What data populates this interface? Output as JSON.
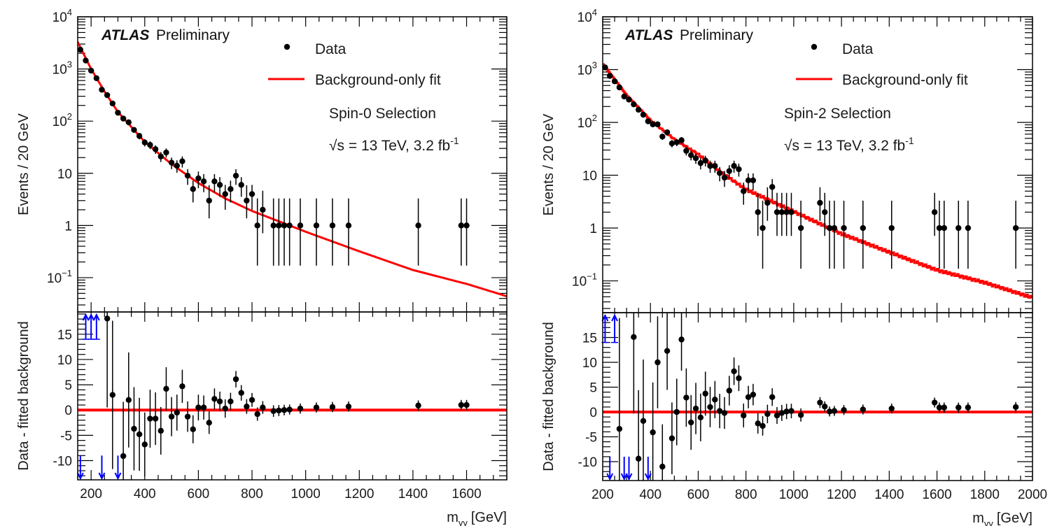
{
  "colors": {
    "data": "#000000",
    "fit": "#ff0000",
    "arrows": "#0000ff",
    "frame": "#000000"
  },
  "chart_data": [
    {
      "type": "scatter",
      "panel": "left",
      "experiment": "ATLAS",
      "status": "Preliminary",
      "selection": "Spin-0 Selection",
      "energy_lumi": "√s = 13 TeV, 3.2 fb",
      "lumi_exponent": "-1",
      "legend": {
        "data": "Data",
        "fit": "Background-only fit",
        "placement": "top-right"
      },
      "xlabel": "m",
      "xlabel_sub": "γγ",
      "xlabel_unit": "[GeV]",
      "xlim": [
        150,
        1750
      ],
      "xticks": [
        200,
        400,
        600,
        800,
        1000,
        1200,
        1400,
        1600
      ],
      "main": {
        "ylabel": "Events / 20 GeV",
        "yscale": "log",
        "ylim": [
          0.022,
          10000
        ],
        "yticks": [
          {
            "base": "10",
            "exp": "4",
            "v": 10000
          },
          {
            "base": "10",
            "exp": "3",
            "v": 1000
          },
          {
            "base": "10",
            "exp": "2",
            "v": 100
          },
          {
            "base": "10",
            "exp": "",
            "v": 10
          },
          {
            "base": "1",
            "exp": "",
            "v": 1
          },
          {
            "base": "10",
            "exp": "−1",
            "v": 0.1
          }
        ],
        "data": [
          [
            160,
            2340
          ],
          [
            180,
            1450
          ],
          [
            200,
            930
          ],
          [
            220,
            665
          ],
          [
            240,
            400
          ],
          [
            260,
            315
          ],
          [
            280,
            218
          ],
          [
            300,
            145
          ],
          [
            320,
            112
          ],
          [
            340,
            95
          ],
          [
            360,
            68
          ],
          [
            380,
            52
          ],
          [
            400,
            39
          ],
          [
            420,
            35
          ],
          [
            440,
            29
          ],
          [
            460,
            21
          ],
          [
            480,
            25
          ],
          [
            500,
            16
          ],
          [
            520,
            14
          ],
          [
            540,
            17
          ],
          [
            560,
            9
          ],
          [
            580,
            5
          ],
          [
            600,
            8
          ],
          [
            620,
            7
          ],
          [
            640,
            3
          ],
          [
            660,
            7
          ],
          [
            680,
            6
          ],
          [
            700,
            4
          ],
          [
            720,
            5
          ],
          [
            740,
            9
          ],
          [
            760,
            6
          ],
          [
            780,
            3
          ],
          [
            800,
            4
          ],
          [
            820,
            1
          ],
          [
            840,
            2
          ],
          [
            880,
            1
          ],
          [
            900,
            1
          ],
          [
            920,
            1
          ],
          [
            940,
            1
          ],
          [
            980,
            1
          ],
          [
            1040,
            1
          ],
          [
            1100,
            1
          ],
          [
            1160,
            1
          ],
          [
            1420,
            1
          ],
          [
            1580,
            1
          ],
          [
            1600,
            1
          ]
        ],
        "fit": [
          [
            150,
            3300
          ],
          [
            200,
            1000
          ],
          [
            250,
            370
          ],
          [
            300,
            150
          ],
          [
            400,
            40
          ],
          [
            500,
            15
          ],
          [
            600,
            6.5
          ],
          [
            700,
            3.3
          ],
          [
            800,
            1.9
          ],
          [
            1000,
            0.76
          ],
          [
            1200,
            0.32
          ],
          [
            1400,
            0.14
          ],
          [
            1600,
            0.076
          ],
          [
            1750,
            0.044
          ]
        ]
      },
      "ratio": {
        "ylabel": "Data - fitted background",
        "ylim": [
          -13.8,
          19.4
        ],
        "yticks": [
          15,
          10,
          5,
          0,
          -5,
          -10
        ],
        "points": [
          [
            260,
            18.1
          ],
          [
            280,
            3.0
          ],
          [
            320,
            -9.1
          ],
          [
            340,
            2.0
          ],
          [
            360,
            -3.7
          ],
          [
            380,
            -4.8
          ],
          [
            400,
            -6.8
          ],
          [
            420,
            -1.7
          ],
          [
            440,
            -1.7
          ],
          [
            460,
            -4.1
          ],
          [
            480,
            4.2
          ],
          [
            500,
            -1.3
          ],
          [
            520,
            -0.5
          ],
          [
            540,
            4.7
          ],
          [
            560,
            -1.3
          ],
          [
            580,
            -3.8
          ],
          [
            600,
            0.5
          ],
          [
            620,
            0.5
          ],
          [
            640,
            -2.5
          ],
          [
            660,
            2.2
          ],
          [
            680,
            1.7
          ],
          [
            700,
            0.3
          ],
          [
            720,
            1.7
          ],
          [
            740,
            6.1
          ],
          [
            760,
            3.4
          ],
          [
            780,
            0.7
          ],
          [
            800,
            2.0
          ],
          [
            820,
            -0.8
          ],
          [
            840,
            0.5
          ],
          [
            880,
            -0.2
          ],
          [
            900,
            -0.1
          ],
          [
            920,
            0.0
          ],
          [
            940,
            0.1
          ],
          [
            980,
            0.3
          ],
          [
            1040,
            0.5
          ],
          [
            1100,
            0.6
          ],
          [
            1160,
            0.7
          ],
          [
            1420,
            0.9
          ],
          [
            1580,
            1.0
          ],
          [
            1600,
            1.0
          ]
        ],
        "arrows_up": [
          180,
          200,
          220
        ],
        "arrows_down": [
          160,
          240,
          300
        ]
      }
    },
    {
      "type": "scatter",
      "panel": "right",
      "experiment": "ATLAS",
      "status": "Preliminary",
      "selection": "Spin-2 Selection",
      "energy_lumi": "√s = 13 TeV, 3.2 fb",
      "lumi_exponent": "-1",
      "legend": {
        "data": "Data",
        "fit": "Background-only fit",
        "placement": "top-right"
      },
      "xlabel": "m",
      "xlabel_sub": "γγ",
      "xlabel_unit": "[GeV]",
      "xlim": [
        200,
        2000
      ],
      "xticks": [
        200,
        400,
        600,
        800,
        1000,
        1200,
        1400,
        1600,
        1800,
        2000
      ],
      "main": {
        "ylabel": "Events / 20 GeV",
        "yscale": "log",
        "ylim": [
          0.025,
          10000
        ],
        "yticks": [
          {
            "base": "10",
            "exp": "4",
            "v": 10000
          },
          {
            "base": "10",
            "exp": "3",
            "v": 1000
          },
          {
            "base": "10",
            "exp": "2",
            "v": 100
          },
          {
            "base": "10",
            "exp": "",
            "v": 10
          },
          {
            "base": "1",
            "exp": "",
            "v": 1
          },
          {
            "base": "10",
            "exp": "−1",
            "v": 0.1
          }
        ],
        "data": [
          [
            210,
            1100
          ],
          [
            230,
            760
          ],
          [
            250,
            600
          ],
          [
            270,
            460
          ],
          [
            290,
            310
          ],
          [
            310,
            270
          ],
          [
            330,
            220
          ],
          [
            350,
            174
          ],
          [
            370,
            140
          ],
          [
            390,
            105
          ],
          [
            410,
            92
          ],
          [
            430,
            92
          ],
          [
            450,
            54
          ],
          [
            470,
            65
          ],
          [
            490,
            40
          ],
          [
            510,
            42
          ],
          [
            530,
            46
          ],
          [
            550,
            29
          ],
          [
            570,
            24
          ],
          [
            590,
            21
          ],
          [
            610,
            17
          ],
          [
            630,
            19
          ],
          [
            650,
            15
          ],
          [
            670,
            15
          ],
          [
            690,
            11
          ],
          [
            710,
            9
          ],
          [
            730,
            12
          ],
          [
            750,
            15
          ],
          [
            770,
            13
          ],
          [
            790,
            5
          ],
          [
            810,
            8
          ],
          [
            830,
            8
          ],
          [
            850,
            2
          ],
          [
            870,
            1
          ],
          [
            890,
            3
          ],
          [
            910,
            6
          ],
          [
            930,
            2
          ],
          [
            950,
            2
          ],
          [
            970,
            2
          ],
          [
            990,
            2
          ],
          [
            1030,
            1
          ],
          [
            1110,
            3
          ],
          [
            1130,
            2
          ],
          [
            1150,
            1
          ],
          [
            1170,
            1
          ],
          [
            1210,
            1
          ],
          [
            1290,
            1
          ],
          [
            1410,
            1
          ],
          [
            1590,
            2
          ],
          [
            1610,
            1
          ],
          [
            1630,
            1
          ],
          [
            1690,
            1
          ],
          [
            1730,
            1
          ],
          [
            1930,
            1
          ]
        ],
        "fit": [
          [
            200,
            1300
          ],
          [
            300,
            330
          ],
          [
            400,
            110
          ],
          [
            500,
            48
          ],
          [
            600,
            25
          ],
          [
            700,
            11
          ],
          [
            800,
            5.4
          ],
          [
            1000,
            2.05
          ],
          [
            1200,
            0.78
          ],
          [
            1400,
            0.35
          ],
          [
            1600,
            0.16
          ],
          [
            1800,
            0.093
          ],
          [
            2000,
            0.048
          ]
        ]
      },
      "ratio": {
        "ylabel": "Data - fitted background",
        "ylim": [
          -13.8,
          20.0
        ],
        "yticks": [
          15,
          10,
          5,
          0,
          -5,
          -10
        ],
        "points": [
          [
            270,
            -3.4
          ],
          [
            330,
            15.1
          ],
          [
            350,
            -9.4
          ],
          [
            370,
            -1.8
          ],
          [
            410,
            -4.1
          ],
          [
            430,
            10.0
          ],
          [
            450,
            -11.0
          ],
          [
            470,
            12.3
          ],
          [
            490,
            -5.3
          ],
          [
            510,
            0.0
          ],
          [
            530,
            14.6
          ],
          [
            550,
            2.9
          ],
          [
            570,
            -2.1
          ],
          [
            590,
            0.7
          ],
          [
            610,
            -1.1
          ],
          [
            630,
            3.7
          ],
          [
            650,
            1.0
          ],
          [
            670,
            2.5
          ],
          [
            690,
            0.2
          ],
          [
            710,
            -0.2
          ],
          [
            730,
            4.3
          ],
          [
            750,
            8.2
          ],
          [
            770,
            6.8
          ],
          [
            790,
            -0.7
          ],
          [
            810,
            3.0
          ],
          [
            830,
            3.5
          ],
          [
            850,
            -2.3
          ],
          [
            870,
            -2.8
          ],
          [
            890,
            -0.4
          ],
          [
            910,
            3.0
          ],
          [
            930,
            -0.7
          ],
          [
            950,
            -0.2
          ],
          [
            970,
            0.1
          ],
          [
            990,
            0.2
          ],
          [
            1030,
            -0.6
          ],
          [
            1110,
            1.9
          ],
          [
            1130,
            1.1
          ],
          [
            1150,
            0.1
          ],
          [
            1170,
            0.2
          ],
          [
            1210,
            0.4
          ],
          [
            1290,
            0.5
          ],
          [
            1410,
            0.7
          ],
          [
            1590,
            1.9
          ],
          [
            1610,
            0.9
          ],
          [
            1630,
            0.9
          ],
          [
            1690,
            0.9
          ],
          [
            1730,
            0.9
          ],
          [
            1930,
            1.0
          ]
        ],
        "arrows_up": [
          210,
          250
        ],
        "arrows_down": [
          230,
          290,
          310,
          390
        ]
      }
    }
  ]
}
